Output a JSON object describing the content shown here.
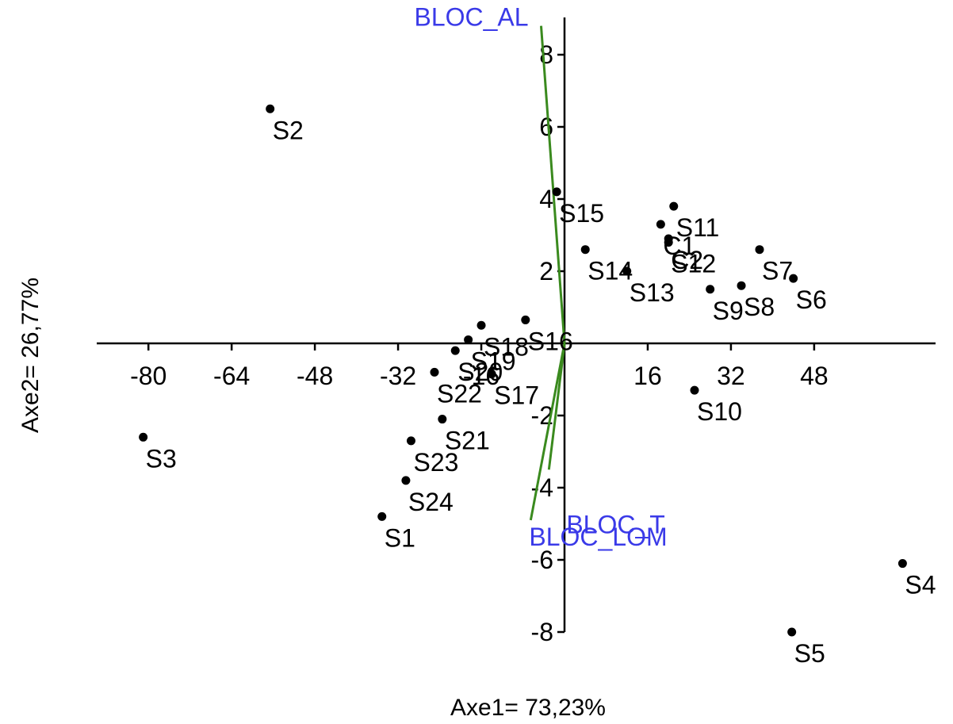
{
  "chart_data": {
    "type": "scatter",
    "title": "",
    "xlabel": "Axe1= 73,23%",
    "ylabel": "Axe2= 26,77%",
    "xlim": [
      -90,
      72
    ],
    "ylim": [
      -8.8,
      9.1
    ],
    "xticks": [
      -80,
      -64,
      -48,
      -32,
      -16,
      16,
      32,
      48
    ],
    "yticks": [
      -8,
      -6,
      -4,
      -2,
      2,
      4,
      6,
      8
    ],
    "grid": false,
    "points": [
      {
        "label": "S1",
        "x": -35.1,
        "y": -4.8
      },
      {
        "label": "S2",
        "x": -56.6,
        "y": 6.5
      },
      {
        "label": "S3",
        "x": -81.0,
        "y": -2.6
      },
      {
        "label": "S4",
        "x": 65.0,
        "y": -6.1
      },
      {
        "label": "S5",
        "x": 43.7,
        "y": -8.0
      },
      {
        "label": "S6",
        "x": 44.0,
        "y": 1.8
      },
      {
        "label": "S7",
        "x": 37.5,
        "y": 2.6
      },
      {
        "label": "S8",
        "x": 34.0,
        "y": 1.6
      },
      {
        "label": "S9",
        "x": 28.0,
        "y": 1.5
      },
      {
        "label": "S10",
        "x": 25.0,
        "y": -1.3
      },
      {
        "label": "S11",
        "x": 21.0,
        "y": 3.8
      },
      {
        "label": "S12",
        "x": 20.0,
        "y": 2.8
      },
      {
        "label": "S13",
        "x": 12.0,
        "y": 2.0
      },
      {
        "label": "S14",
        "x": 4.0,
        "y": 2.6
      },
      {
        "label": "S15",
        "x": -1.5,
        "y": 4.2
      },
      {
        "label": "S16",
        "x": -7.5,
        "y": 0.65
      },
      {
        "label": "S17",
        "x": -14.0,
        "y": -0.85
      },
      {
        "label": "S18",
        "x": -16.0,
        "y": 0.5
      },
      {
        "label": "S19",
        "x": -18.5,
        "y": 0.1
      },
      {
        "label": "S20",
        "x": -21.0,
        "y": -0.2
      },
      {
        "label": "S21",
        "x": -23.5,
        "y": -2.1
      },
      {
        "label": "S22",
        "x": -25.0,
        "y": -0.8
      },
      {
        "label": "S23",
        "x": -29.5,
        "y": -2.7
      },
      {
        "label": "S24",
        "x": -30.5,
        "y": -3.8
      },
      {
        "label": "C1",
        "x": 18.5,
        "y": 3.3
      },
      {
        "label": "C2",
        "x": 20.0,
        "y": 2.9
      }
    ],
    "vectors": [
      {
        "label": "BLOC_AL",
        "x": -4.5,
        "y": 8.8
      },
      {
        "label": "BLOC_T",
        "x": -3.0,
        "y": -3.5
      },
      {
        "label": "BLOC_LOM",
        "x": -6.5,
        "y": -4.9
      }
    ],
    "colors": {
      "points": "#000000",
      "vectors": "#3a8a1e",
      "vector_labels": "#3a3ae8"
    }
  }
}
